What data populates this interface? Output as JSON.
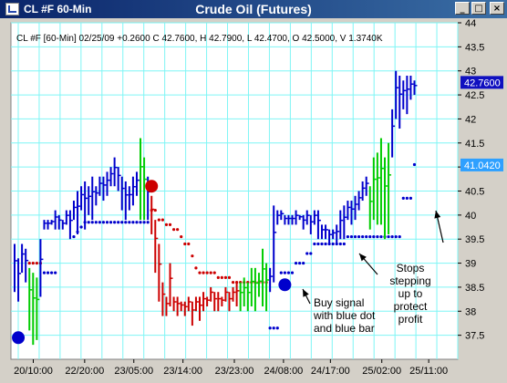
{
  "window": {
    "left_title": "CL #F 60-Min",
    "center_title": "Crude Oil (Futures)",
    "buttons": {
      "minimize": "_",
      "maximize": "□",
      "close": "×"
    }
  },
  "chart_data": {
    "type": "bar",
    "info_line": "CL #F [60-Min] 02/25/09  +0.2600 C 42.7600, H 42.7900, L 42.4700, O 42.5000, V 1.3740K",
    "ylim": [
      37,
      44
    ],
    "y_ticks": [
      37.5,
      38,
      38.5,
      39,
      39.5,
      40,
      40.5,
      41,
      41.5,
      42,
      42.5,
      43,
      43.5,
      44
    ],
    "x_tick_labels": [
      "20/10:00",
      "22/20:00",
      "23/05:00",
      "23/14:00",
      "23/23:00",
      "24/08:00",
      "24/17:00",
      "25/02:00",
      "25/11:00"
    ],
    "x_tick_positions": [
      5,
      16.5,
      27.5,
      38.5,
      50,
      61,
      71.5,
      83,
      93.5
    ],
    "last_price_label": "42.7600",
    "stop_price_label": "41.0420",
    "grid": true,
    "colors": {
      "blue": "#0000cc",
      "red": "#cc0000",
      "green": "#00cc00",
      "grid": "#7ff5f5",
      "stop_label_bg": "#2ea0ff",
      "last_label_bg": "#1010c0"
    },
    "series": [
      {
        "name": "",
        "segments": [
          {
            "color": "blue",
            "start": 0,
            "bars": [
              [
                38.4,
                39.4
              ],
              [
                38.2,
                39.1
              ],
              [
                38.8,
                39.4
              ],
              [
                38.6,
                39.3
              ]
            ]
          },
          {
            "color": "green",
            "start": 4,
            "bars": [
              [
                37.6,
                38.9
              ],
              [
                37.3,
                38.8
              ],
              [
                37.4,
                38.7
              ]
            ]
          },
          {
            "color": "blue",
            "start": 7,
            "bars": [
              [
                38.3,
                39.5
              ]
            ]
          },
          {
            "color": "blue",
            "start": 8,
            "bars": [
              [
                39.7,
                39.9
              ],
              [
                39.7,
                39.9
              ],
              [
                39.8,
                39.9
              ],
              [
                39.7,
                40.1
              ],
              [
                39.7,
                40.0
              ],
              [
                39.7,
                39.9
              ],
              [
                39.8,
                40.1
              ],
              [
                39.5,
                40.1
              ],
              [
                39.9,
                40.3
              ],
              [
                39.6,
                40.5
              ],
              [
                40.1,
                40.6
              ],
              [
                39.7,
                40.7
              ],
              [
                40.0,
                40.6
              ],
              [
                39.9,
                40.8
              ],
              [
                40.2,
                40.6
              ],
              [
                40.4,
                40.8
              ],
              [
                40.3,
                40.8
              ],
              [
                40.4,
                40.9
              ],
              [
                40.6,
                41.0
              ],
              [
                40.6,
                41.2
              ],
              [
                40.5,
                41.0
              ],
              [
                40.1,
                40.8
              ],
              [
                39.9,
                40.7
              ],
              [
                40.1,
                40.6
              ],
              [
                40.2,
                40.8
              ],
              [
                40.4,
                40.9
              ]
            ]
          },
          {
            "color": "green",
            "start": 34,
            "bars": [
              [
                39.9,
                41.6
              ],
              [
                39.9,
                41.2
              ]
            ]
          },
          {
            "color": "blue",
            "start": 36,
            "bars": [
              [
                39.9,
                40.8
              ]
            ]
          },
          {
            "color": "red",
            "start": 37,
            "bars": [
              [
                39.6,
                40.4
              ],
              [
                38.8,
                39.9
              ],
              [
                38.2,
                39.4
              ],
              [
                37.9,
                38.6
              ],
              [
                37.9,
                38.3
              ],
              [
                38.1,
                39.0
              ],
              [
                38.0,
                38.3
              ],
              [
                37.9,
                38.3
              ],
              [
                38.0,
                38.2
              ],
              [
                37.9,
                38.2
              ],
              [
                38.0,
                38.3
              ],
              [
                37.7,
                38.2
              ],
              [
                38.0,
                38.3
              ],
              [
                37.8,
                38.3
              ],
              [
                38.0,
                38.4
              ],
              [
                38.1,
                38.3
              ],
              [
                38.2,
                38.5
              ],
              [
                38.0,
                38.4
              ],
              [
                38.0,
                38.4
              ],
              [
                38.1,
                38.3
              ],
              [
                38.2,
                38.5
              ],
              [
                38.0,
                38.4
              ],
              [
                38.2,
                38.5
              ],
              [
                38.1,
                38.6
              ]
            ]
          },
          {
            "color": "green",
            "start": 61,
            "bars": [
              [
                38.0,
                38.6
              ],
              [
                38.1,
                38.7
              ],
              [
                38.0,
                38.6
              ],
              [
                38.1,
                38.9
              ],
              [
                38.0,
                38.9
              ],
              [
                38.3,
                38.8
              ],
              [
                38.1,
                39.3
              ],
              [
                38.0,
                39.0
              ]
            ]
          },
          {
            "color": "blue",
            "start": 69,
            "bars": [
              [
                38.4,
                38.9
              ]
            ]
          },
          {
            "color": "blue",
            "start": 70,
            "bars": [
              [
                38.6,
                40.2
              ],
              [
                39.8,
                40.1
              ],
              [
                39.9,
                40.1
              ],
              [
                39.8,
                40.0
              ],
              [
                39.8,
                40.0
              ],
              [
                39.8,
                40.0
              ],
              [
                39.8,
                40.1
              ],
              [
                39.9,
                40.0
              ],
              [
                39.7,
                40.0
              ],
              [
                39.8,
                40.1
              ],
              [
                39.6,
                40.0
              ],
              [
                39.8,
                40.1
              ],
              [
                39.5,
                40.1
              ],
              [
                39.5,
                39.8
              ],
              [
                39.5,
                39.8
              ],
              [
                39.4,
                39.7
              ],
              [
                39.5,
                39.7
              ],
              [
                39.4,
                39.8
              ],
              [
                39.5,
                40.1
              ],
              [
                39.5,
                40.2
              ],
              [
                39.9,
                40.3
              ],
              [
                39.8,
                40.3
              ],
              [
                39.9,
                40.4
              ],
              [
                40.1,
                40.5
              ],
              [
                40.3,
                40.7
              ],
              [
                40.4,
                40.8
              ]
            ]
          },
          {
            "color": "green",
            "start": 96,
            "bars": [
              [
                39.7,
                40.6
              ],
              [
                39.9,
                41.2
              ],
              [
                39.8,
                41.3
              ],
              [
                39.8,
                41.6
              ],
              [
                39.5,
                41.2
              ],
              [
                39.6,
                41.5
              ]
            ]
          },
          {
            "color": "blue",
            "start": 102,
            "bars": [
              [
                41.2,
                42.2
              ],
              [
                42.0,
                43.0
              ],
              [
                41.8,
                42.9
              ],
              [
                42.2,
                42.8
              ],
              [
                42.1,
                42.9
              ],
              [
                42.4,
                42.9
              ],
              [
                42.5,
                42.8
              ]
            ]
          }
        ]
      },
      {
        "name": "",
        "stop_dots": [
          {
            "color": "red",
            "y": 39.0,
            "from": 4,
            "to": 7
          },
          {
            "color": "blue",
            "y": 38.8,
            "from": 8,
            "to": 11
          },
          {
            "color": "blue",
            "y": 39.55,
            "from": 16,
            "to": 16
          },
          {
            "color": "blue",
            "y": 39.65,
            "from": 17,
            "to": 17
          },
          {
            "color": "blue",
            "y": 39.75,
            "from": 18,
            "to": 18
          },
          {
            "color": "blue",
            "y": 39.85,
            "from": 19,
            "to": 36
          },
          {
            "color": "red",
            "y": 40.1,
            "from": 37,
            "to": 38
          },
          {
            "color": "red",
            "y": 39.9,
            "from": 39,
            "to": 40
          },
          {
            "color": "red",
            "y": 39.8,
            "from": 41,
            "to": 42
          },
          {
            "color": "red",
            "y": 39.7,
            "from": 43,
            "to": 44
          },
          {
            "color": "red",
            "y": 39.55,
            "from": 45,
            "to": 45
          },
          {
            "color": "red",
            "y": 39.4,
            "from": 46,
            "to": 47
          },
          {
            "color": "red",
            "y": 39.15,
            "from": 48,
            "to": 48
          },
          {
            "color": "red",
            "y": 38.9,
            "from": 49,
            "to": 49
          },
          {
            "color": "red",
            "y": 38.8,
            "from": 50,
            "to": 54
          },
          {
            "color": "red",
            "y": 38.7,
            "from": 55,
            "to": 58
          },
          {
            "color": "red",
            "y": 38.6,
            "from": 59,
            "to": 68
          },
          {
            "color": "blue",
            "y": 37.65,
            "from": 69,
            "to": 71
          },
          {
            "color": "blue",
            "y": 38.8,
            "from": 72,
            "to": 75
          },
          {
            "color": "blue",
            "y": 39.0,
            "from": 76,
            "to": 78
          },
          {
            "color": "blue",
            "y": 39.2,
            "from": 79,
            "to": 80
          },
          {
            "color": "blue",
            "y": 39.4,
            "from": 81,
            "to": 89
          },
          {
            "color": "blue",
            "y": 39.55,
            "from": 90,
            "to": 104
          },
          {
            "color": "blue",
            "y": 40.35,
            "from": 105,
            "to": 107
          },
          {
            "color": "blue",
            "y": 41.05,
            "from": 108,
            "to": 108
          }
        ]
      }
    ],
    "signals": [
      {
        "type": "buy",
        "color": "blue",
        "x": 1,
        "y": 37.45
      },
      {
        "type": "sell",
        "color": "red",
        "x": 37,
        "y": 40.6
      },
      {
        "type": "buy",
        "color": "blue",
        "x": 73,
        "y": 38.55
      }
    ],
    "annotations": {
      "buy_signal": [
        "Buy signal",
        "with blue dot",
        "and blue bar"
      ],
      "stops": [
        "Stops",
        "stepping",
        "up to",
        "protect",
        "profit"
      ]
    }
  }
}
